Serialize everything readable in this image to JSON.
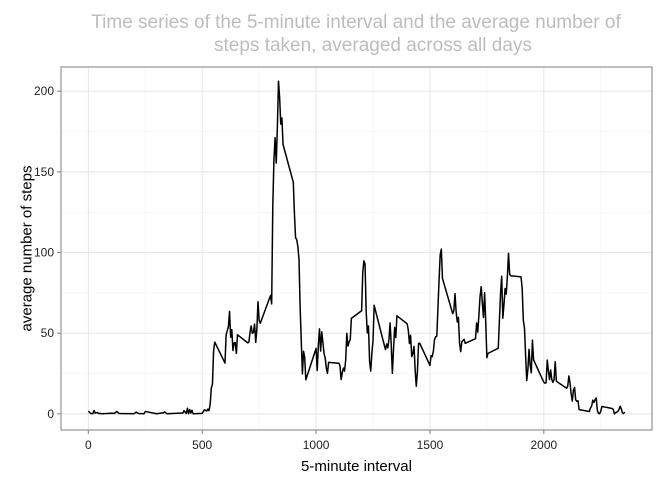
{
  "chart_data": {
    "type": "line",
    "title_lines": [
      "Time series of the 5-minute interval and the average number of",
      "steps taken, averaged across all days"
    ],
    "xlabel": "5-minute interval",
    "ylabel": "average number of steps",
    "xlim": [
      -120,
      2475
    ],
    "ylim": [
      -10,
      215
    ],
    "x_ticks": [
      0,
      500,
      1000,
      1500,
      2000
    ],
    "y_ticks": [
      0,
      50,
      100,
      150,
      200
    ],
    "x_tick_labels": [
      "0",
      "500",
      "1000",
      "1500",
      "2000"
    ],
    "y_tick_labels": [
      "0",
      "50",
      "100",
      "150",
      "200"
    ],
    "grid": true,
    "series": [
      {
        "color": "#000000",
        "points": [
          [
            0,
            1.7
          ],
          [
            10,
            0.3
          ],
          [
            20,
            0.1
          ],
          [
            25,
            2.1
          ],
          [
            30,
            0.5
          ],
          [
            40,
            0.9
          ],
          [
            45,
            0.2
          ],
          [
            50,
            0.3
          ],
          [
            60,
            0.1
          ],
          [
            100,
            0.4
          ],
          [
            115,
            0.3
          ],
          [
            125,
            1.5
          ],
          [
            135,
            0.2
          ],
          [
            200,
            0.1
          ],
          [
            210,
            1.1
          ],
          [
            220,
            0.2
          ],
          [
            245,
            0.1
          ],
          [
            250,
            1.5
          ],
          [
            300,
            0.1
          ],
          [
            330,
            0.7
          ],
          [
            335,
            1.2
          ],
          [
            345,
            0.1
          ],
          [
            415,
            0.5
          ],
          [
            420,
            2.0
          ],
          [
            430,
            0.2
          ],
          [
            435,
            3.5
          ],
          [
            440,
            0.1
          ],
          [
            445,
            2.7
          ],
          [
            450,
            0.5
          ],
          [
            455,
            2.2
          ],
          [
            460,
            0.1
          ],
          [
            500,
            0.3
          ],
          [
            510,
            2.5
          ],
          [
            520,
            1.8
          ],
          [
            525,
            3.0
          ],
          [
            530,
            2.0
          ],
          [
            535,
            6.0
          ],
          [
            540,
            16.0
          ],
          [
            545,
            18.5
          ],
          [
            550,
            39.0
          ],
          [
            555,
            44.5
          ],
          [
            600,
            31.5
          ],
          [
            605,
            49.0
          ],
          [
            615,
            54.0
          ],
          [
            620,
            63.5
          ],
          [
            625,
            47.5
          ],
          [
            630,
            52.2
          ],
          [
            635,
            39.3
          ],
          [
            640,
            44.0
          ],
          [
            645,
            44.2
          ],
          [
            650,
            37.5
          ],
          [
            655,
            49.0
          ],
          [
            700,
            44.0
          ],
          [
            705,
            44.5
          ],
          [
            710,
            50.5
          ],
          [
            715,
            54.5
          ],
          [
            720,
            49.9
          ],
          [
            725,
            50.5
          ],
          [
            730,
            55.7
          ],
          [
            735,
            44.3
          ],
          [
            740,
            52.3
          ],
          [
            745,
            69.5
          ],
          [
            750,
            58.0
          ],
          [
            755,
            56.2
          ],
          [
            800,
            73.4
          ],
          [
            805,
            68.2
          ],
          [
            810,
            129.4
          ],
          [
            815,
            157.5
          ],
          [
            820,
            171.2
          ],
          [
            825,
            155.4
          ],
          [
            830,
            177.3
          ],
          [
            835,
            206.2
          ],
          [
            840,
            195.9
          ],
          [
            845,
            179.6
          ],
          [
            850,
            183.4
          ],
          [
            855,
            167.0
          ],
          [
            900,
            143.5
          ],
          [
            905,
            124.0
          ],
          [
            910,
            109.1
          ],
          [
            915,
            108.1
          ],
          [
            920,
            103.7
          ],
          [
            925,
            95.9
          ],
          [
            930,
            66.2
          ],
          [
            935,
            45.2
          ],
          [
            940,
            24.8
          ],
          [
            945,
            38.8
          ],
          [
            950,
            35.0
          ],
          [
            955,
            21.1
          ],
          [
            1000,
            40.6
          ],
          [
            1005,
            26.9
          ],
          [
            1010,
            42.4
          ],
          [
            1015,
            52.7
          ],
          [
            1020,
            38.9
          ],
          [
            1025,
            50.8
          ],
          [
            1030,
            44.3
          ],
          [
            1035,
            37.4
          ],
          [
            1040,
            34.7
          ],
          [
            1045,
            28.3
          ],
          [
            1050,
            25.1
          ],
          [
            1055,
            31.9
          ],
          [
            1100,
            31.4
          ],
          [
            1105,
            29.7
          ],
          [
            1110,
            21.3
          ],
          [
            1115,
            25.5
          ],
          [
            1120,
            28.4
          ],
          [
            1125,
            26.5
          ],
          [
            1130,
            33.3
          ],
          [
            1135,
            49.9
          ],
          [
            1140,
            42.0
          ],
          [
            1145,
            44.6
          ],
          [
            1150,
            46.0
          ],
          [
            1155,
            59.2
          ],
          [
            1200,
            63.9
          ],
          [
            1205,
            87.7
          ],
          [
            1210,
            94.8
          ],
          [
            1215,
            92.8
          ],
          [
            1220,
            63.4
          ],
          [
            1225,
            50.2
          ],
          [
            1230,
            54.5
          ],
          [
            1235,
            32.4
          ],
          [
            1240,
            26.5
          ],
          [
            1245,
            37.7
          ],
          [
            1250,
            45.1
          ],
          [
            1255,
            67.3
          ],
          [
            1300,
            42.3
          ],
          [
            1305,
            39.9
          ],
          [
            1310,
            43.3
          ],
          [
            1315,
            40.9
          ],
          [
            1320,
            46.2
          ],
          [
            1325,
            56.4
          ],
          [
            1330,
            42.8
          ],
          [
            1335,
            25.1
          ],
          [
            1340,
            39.9
          ],
          [
            1345,
            53.5
          ],
          [
            1350,
            47.3
          ],
          [
            1355,
            60.8
          ],
          [
            1400,
            55.8
          ],
          [
            1405,
            51.9
          ],
          [
            1410,
            43.6
          ],
          [
            1415,
            48.7
          ],
          [
            1420,
            35.5
          ],
          [
            1425,
            37.5
          ],
          [
            1430,
            41.8
          ],
          [
            1435,
            27.5
          ],
          [
            1440,
            17.1
          ],
          [
            1445,
            26.1
          ],
          [
            1450,
            43.6
          ],
          [
            1455,
            43.8
          ],
          [
            1500,
            30.0
          ],
          [
            1505,
            36.1
          ],
          [
            1510,
            35.5
          ],
          [
            1515,
            38.8
          ],
          [
            1520,
            45.96
          ],
          [
            1525,
            47.8
          ],
          [
            1530,
            48.1
          ],
          [
            1535,
            65.3
          ],
          [
            1540,
            82.9
          ],
          [
            1545,
            98.7
          ],
          [
            1550,
            102.1
          ],
          [
            1555,
            83.96
          ],
          [
            1600,
            62.1
          ],
          [
            1605,
            64.1
          ],
          [
            1610,
            74.5
          ],
          [
            1615,
            63.2
          ],
          [
            1620,
            56.9
          ],
          [
            1625,
            59.8
          ],
          [
            1630,
            43.9
          ],
          [
            1635,
            38.6
          ],
          [
            1640,
            44.7
          ],
          [
            1645,
            45.5
          ],
          [
            1650,
            46.2
          ],
          [
            1655,
            43.7
          ],
          [
            1700,
            46.6
          ],
          [
            1705,
            56.3
          ],
          [
            1710,
            50.7
          ],
          [
            1715,
            61.2
          ],
          [
            1720,
            72.7
          ],
          [
            1725,
            78.9
          ],
          [
            1730,
            68.9
          ],
          [
            1735,
            59.7
          ],
          [
            1740,
            75.1
          ],
          [
            1745,
            56.5
          ],
          [
            1750,
            34.8
          ],
          [
            1755,
            37.5
          ],
          [
            1800,
            40.7
          ],
          [
            1805,
            58.0
          ],
          [
            1810,
            74.7
          ],
          [
            1815,
            85.3
          ],
          [
            1820,
            59.3
          ],
          [
            1825,
            67.8
          ],
          [
            1830,
            77.7
          ],
          [
            1835,
            74.2
          ],
          [
            1840,
            85.3
          ],
          [
            1845,
            99.5
          ],
          [
            1850,
            86.6
          ],
          [
            1855,
            85.6
          ],
          [
            1900,
            84.9
          ],
          [
            1905,
            77.8
          ],
          [
            1910,
            58.0
          ],
          [
            1915,
            53.4
          ],
          [
            1920,
            36.3
          ],
          [
            1925,
            20.7
          ],
          [
            1930,
            27.4
          ],
          [
            1935,
            40.0
          ],
          [
            1940,
            30.2
          ],
          [
            1945,
            25.5
          ],
          [
            1950,
            45.7
          ],
          [
            1955,
            33.5
          ],
          [
            2000,
            19.6
          ],
          [
            2005,
            19.0
          ],
          [
            2010,
            19.3
          ],
          [
            2015,
            33.3
          ],
          [
            2020,
            26.8
          ],
          [
            2025,
            21.2
          ],
          [
            2030,
            27.3
          ],
          [
            2035,
            21.3
          ],
          [
            2040,
            19.5
          ],
          [
            2045,
            21.3
          ],
          [
            2050,
            32.3
          ],
          [
            2055,
            20.2
          ],
          [
            2100,
            15.9
          ],
          [
            2105,
            17.2
          ],
          [
            2110,
            23.5
          ],
          [
            2115,
            19.2
          ],
          [
            2120,
            12.5
          ],
          [
            2125,
            8.0
          ],
          [
            2130,
            14.7
          ],
          [
            2135,
            16.3
          ],
          [
            2140,
            8.7
          ],
          [
            2145,
            7.8
          ],
          [
            2150,
            8.1
          ],
          [
            2155,
            2.6
          ],
          [
            2200,
            1.5
          ],
          [
            2205,
            3.7
          ],
          [
            2210,
            4.8
          ],
          [
            2215,
            8.5
          ],
          [
            2220,
            7.1
          ],
          [
            2225,
            8.7
          ],
          [
            2230,
            9.8
          ],
          [
            2235,
            2.2
          ],
          [
            2240,
            0.3
          ],
          [
            2245,
            0.1
          ],
          [
            2250,
            1.6
          ],
          [
            2255,
            4.6
          ],
          [
            2300,
            3.3
          ],
          [
            2305,
            2.8
          ],
          [
            2310,
            0.0
          ],
          [
            2315,
            0.8
          ],
          [
            2320,
            1.0
          ],
          [
            2325,
            1.6
          ],
          [
            2330,
            2.6
          ],
          [
            2335,
            4.7
          ],
          [
            2340,
            3.3
          ],
          [
            2345,
            0.6
          ],
          [
            2350,
            0.2
          ],
          [
            2355,
            1.1
          ]
        ]
      }
    ]
  }
}
